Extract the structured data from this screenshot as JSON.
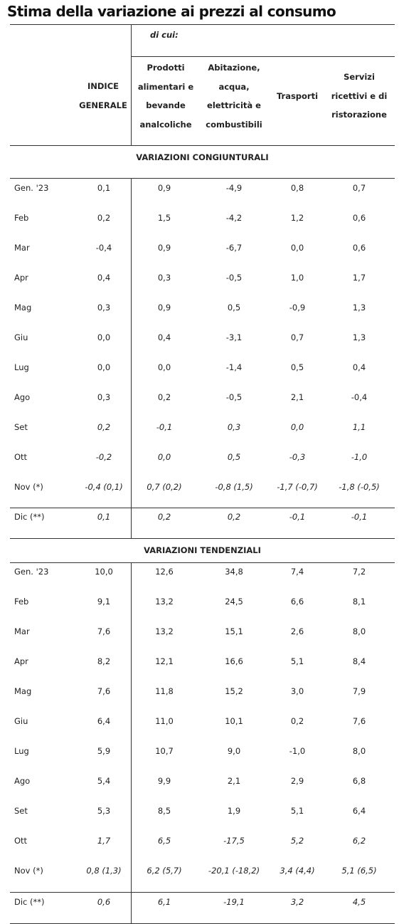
{
  "title": "Stima della variazione ai prezzi al consumo",
  "header": {
    "di_cui": "di cui:",
    "col_indice": [
      "INDICE",
      "GENERALE"
    ],
    "col_prodotti": [
      "Prodotti",
      "alimentari e",
      "bevande",
      "analcoliche"
    ],
    "col_abitazione": [
      "Abitazione,",
      "acqua,",
      "elettricità e",
      "combustibili"
    ],
    "col_trasporti": [
      "Trasporti"
    ],
    "col_servizi": [
      "Servizi",
      "ricettivi e di",
      "ristorazione"
    ]
  },
  "sections": [
    {
      "title": "VARIAZIONI CONGIUNTURALI",
      "rows": [
        {
          "label": "Gen. '23",
          "values": [
            "0,1",
            "0,9",
            "-4,9",
            "0,8",
            "0,7"
          ],
          "italic": false
        },
        {
          "label": "Feb",
          "values": [
            "0,2",
            "1,5",
            "-4,2",
            "1,2",
            "0,6"
          ],
          "italic": false
        },
        {
          "label": "Mar",
          "values": [
            "-0,4",
            "0,9",
            "-6,7",
            "0,0",
            "0,6"
          ],
          "italic": false
        },
        {
          "label": "Apr",
          "values": [
            "0,4",
            "0,3",
            "-0,5",
            "1,0",
            "1,7"
          ],
          "italic": false
        },
        {
          "label": "Mag",
          "values": [
            "0,3",
            "0,9",
            "0,5",
            "-0,9",
            "1,3"
          ],
          "italic": false
        },
        {
          "label": "Giu",
          "values": [
            "0,0",
            "0,4",
            "-3,1",
            "0,7",
            "1,3"
          ],
          "italic": false
        },
        {
          "label": "Lug",
          "values": [
            "0,0",
            "0,0",
            "-1,4",
            "0,5",
            "0,4"
          ],
          "italic": false
        },
        {
          "label": "Ago",
          "values": [
            "0,3",
            "0,2",
            "-0,5",
            "2,1",
            "-0,4"
          ],
          "italic": false
        },
        {
          "label": "Set",
          "values": [
            "0,2",
            "-0,1",
            "0,3",
            "0,0",
            "1,1"
          ],
          "italic": true
        },
        {
          "label": "Ott",
          "values": [
            "-0,2",
            "0,0",
            "0,5",
            "-0,3",
            "-1,0"
          ],
          "italic": true
        },
        {
          "label": "Nov (*)",
          "values": [
            "-0,4 (0,1)",
            "0,7 (0,2)",
            "-0,8 (1,5)",
            "-1,7 (-0,7)",
            "-1,8 (-0,5)"
          ],
          "italic": true
        },
        {
          "label": "Dic (**)",
          "values": [
            "0,1",
            "0,2",
            "0,2",
            "-0,1",
            "-0,1"
          ],
          "italic": true
        }
      ]
    },
    {
      "title": "VARIAZIONI TENDENZIALI",
      "rows": [
        {
          "label": "Gen. '23",
          "values": [
            "10,0",
            "12,6",
            "34,8",
            "7,4",
            "7,2"
          ],
          "italic": false
        },
        {
          "label": "Feb",
          "values": [
            "9,1",
            "13,2",
            "24,5",
            "6,6",
            "8,1"
          ],
          "italic": false
        },
        {
          "label": "Mar",
          "values": [
            "7,6",
            "13,2",
            "15,1",
            "2,6",
            "8,0"
          ],
          "italic": false
        },
        {
          "label": "Apr",
          "values": [
            "8,2",
            "12,1",
            "16,6",
            "5,1",
            "8,4"
          ],
          "italic": false
        },
        {
          "label": "Mag",
          "values": [
            "7,6",
            "11,8",
            "15,2",
            "3,0",
            "7,9"
          ],
          "italic": false
        },
        {
          "label": "Giu",
          "values": [
            "6,4",
            "11,0",
            "10,1",
            "0,2",
            "7,6"
          ],
          "italic": false
        },
        {
          "label": "Lug",
          "values": [
            "5,9",
            "10,7",
            "9,0",
            "-1,0",
            "8,0"
          ],
          "italic": false
        },
        {
          "label": "Ago",
          "values": [
            "5,4",
            "9,9",
            "2,1",
            "2,9",
            "6,8"
          ],
          "italic": false
        },
        {
          "label": "Set",
          "values": [
            "5,3",
            "8,5",
            "1,9",
            "5,1",
            "6,4"
          ],
          "italic": false
        },
        {
          "label": "Ott",
          "values": [
            "1,7",
            "6,5",
            "-17,5",
            "5,2",
            "6,2"
          ],
          "italic": true
        },
        {
          "label": "Nov (*)",
          "values": [
            "0,8 (1,3)",
            "6,2 (5,7)",
            "-20,1 (-18,2)",
            "3,4 (4,4)",
            "5,1 (6,5)"
          ],
          "italic": true
        },
        {
          "label": "Dic (**)",
          "values": [
            "0,6",
            "6,1",
            "-19,1",
            "3,2",
            "4,5"
          ],
          "italic": true
        }
      ]
    }
  ]
}
